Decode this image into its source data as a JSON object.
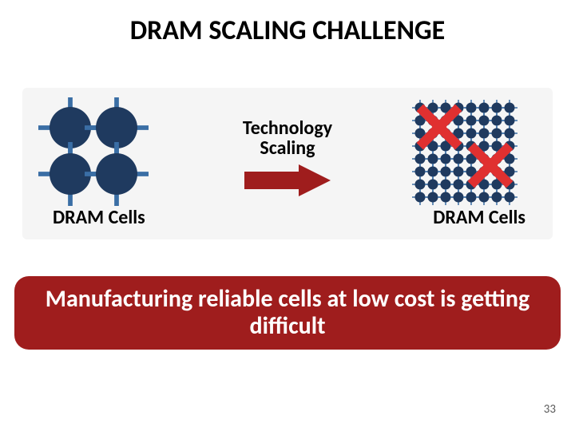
{
  "title": {
    "text": "DRAM SCALING CHALLENGE",
    "font_size": 34,
    "color": "#000000"
  },
  "panel_bg": "#f5f5f5",
  "colors": {
    "cell": "#1f3a5f",
    "wire": "#3a6ea5",
    "arrow": "#9f1d1d",
    "cross": "#e03030",
    "banner_bg": "#9f1d1d",
    "banner_text": "#ffffff"
  },
  "left_grid": {
    "rows": 2,
    "cols": 2,
    "radius": 26,
    "spacing": 58,
    "stick": 14
  },
  "right_grid": {
    "rows": 8,
    "cols": 8,
    "radius": 6.5,
    "spacing": 16,
    "stick": 3.5
  },
  "crosses": [
    {
      "gx": 1.5,
      "gy": 1.5,
      "size": 20
    },
    {
      "gx": 5.5,
      "gy": 4.5,
      "size": 20
    }
  ],
  "center_label": {
    "line1": "Technology",
    "line2": "Scaling",
    "font_size": 24,
    "color": "#000000"
  },
  "caption_left": {
    "text": "DRAM Cells",
    "font_size": 24
  },
  "caption_right": {
    "text": "DRAM Cells",
    "font_size": 24
  },
  "banner": {
    "text": "Manufacturing reliable cells at low cost is getting difficult",
    "font_size": 30
  },
  "page_number": "33"
}
